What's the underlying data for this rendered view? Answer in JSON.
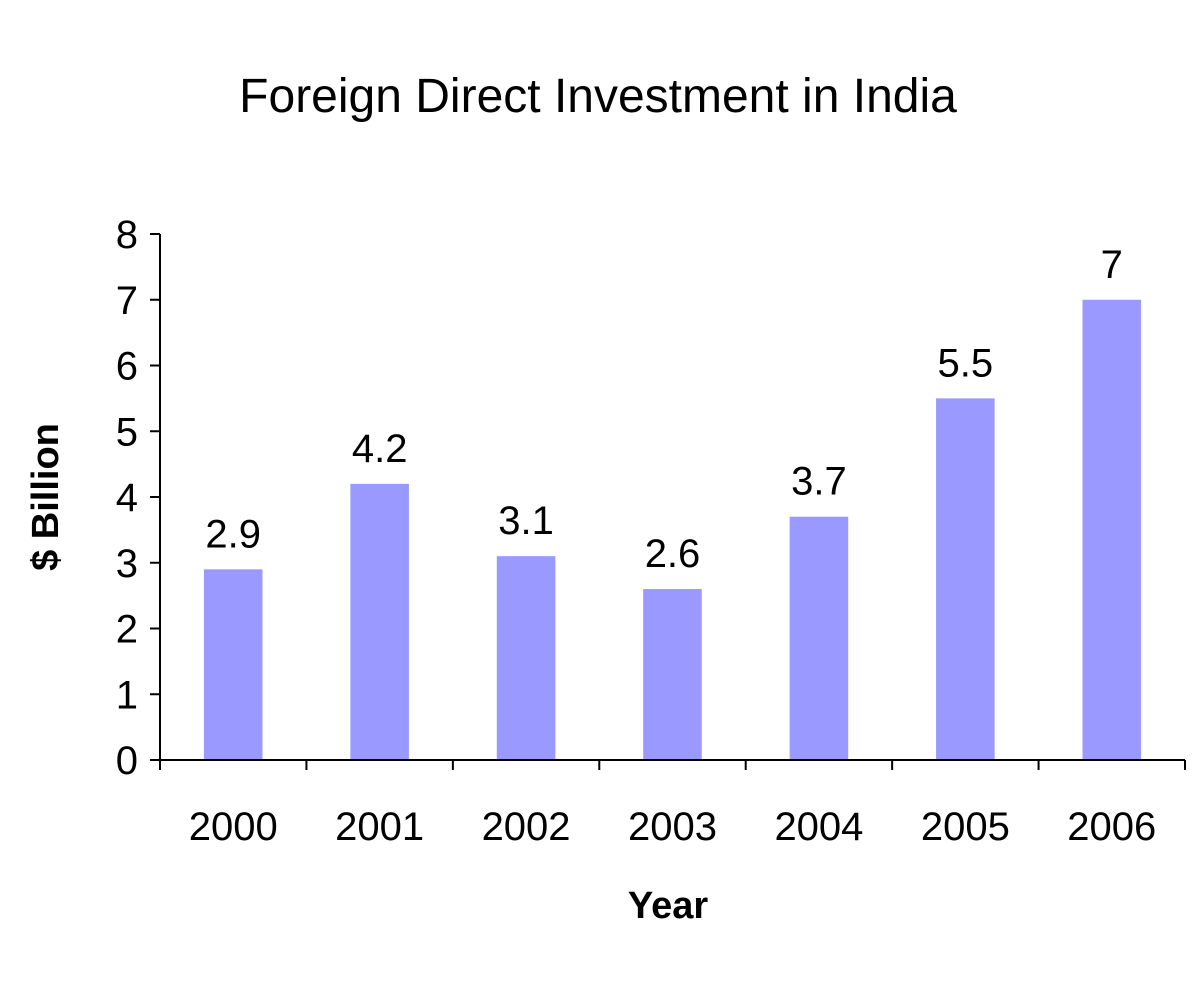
{
  "chart_data": {
    "type": "bar",
    "title": "Foreign Direct Investment in India",
    "xlabel": "Year",
    "ylabel": "$ Billion",
    "categories": [
      "2000",
      "2001",
      "2002",
      "2003",
      "2004",
      "2005",
      "2006"
    ],
    "values": [
      2.9,
      4.2,
      3.1,
      2.6,
      3.7,
      5.5,
      7
    ],
    "value_labels": [
      "2.9",
      "4.2",
      "3.1",
      "2.6",
      "3.7",
      "5.5",
      "7"
    ],
    "ylim": [
      0,
      8
    ],
    "yticks": [
      "0",
      "1",
      "2",
      "3",
      "4",
      "5",
      "6",
      "7",
      "8"
    ],
    "grid": false,
    "legend": "none",
    "bar_color": "#9999ff"
  }
}
